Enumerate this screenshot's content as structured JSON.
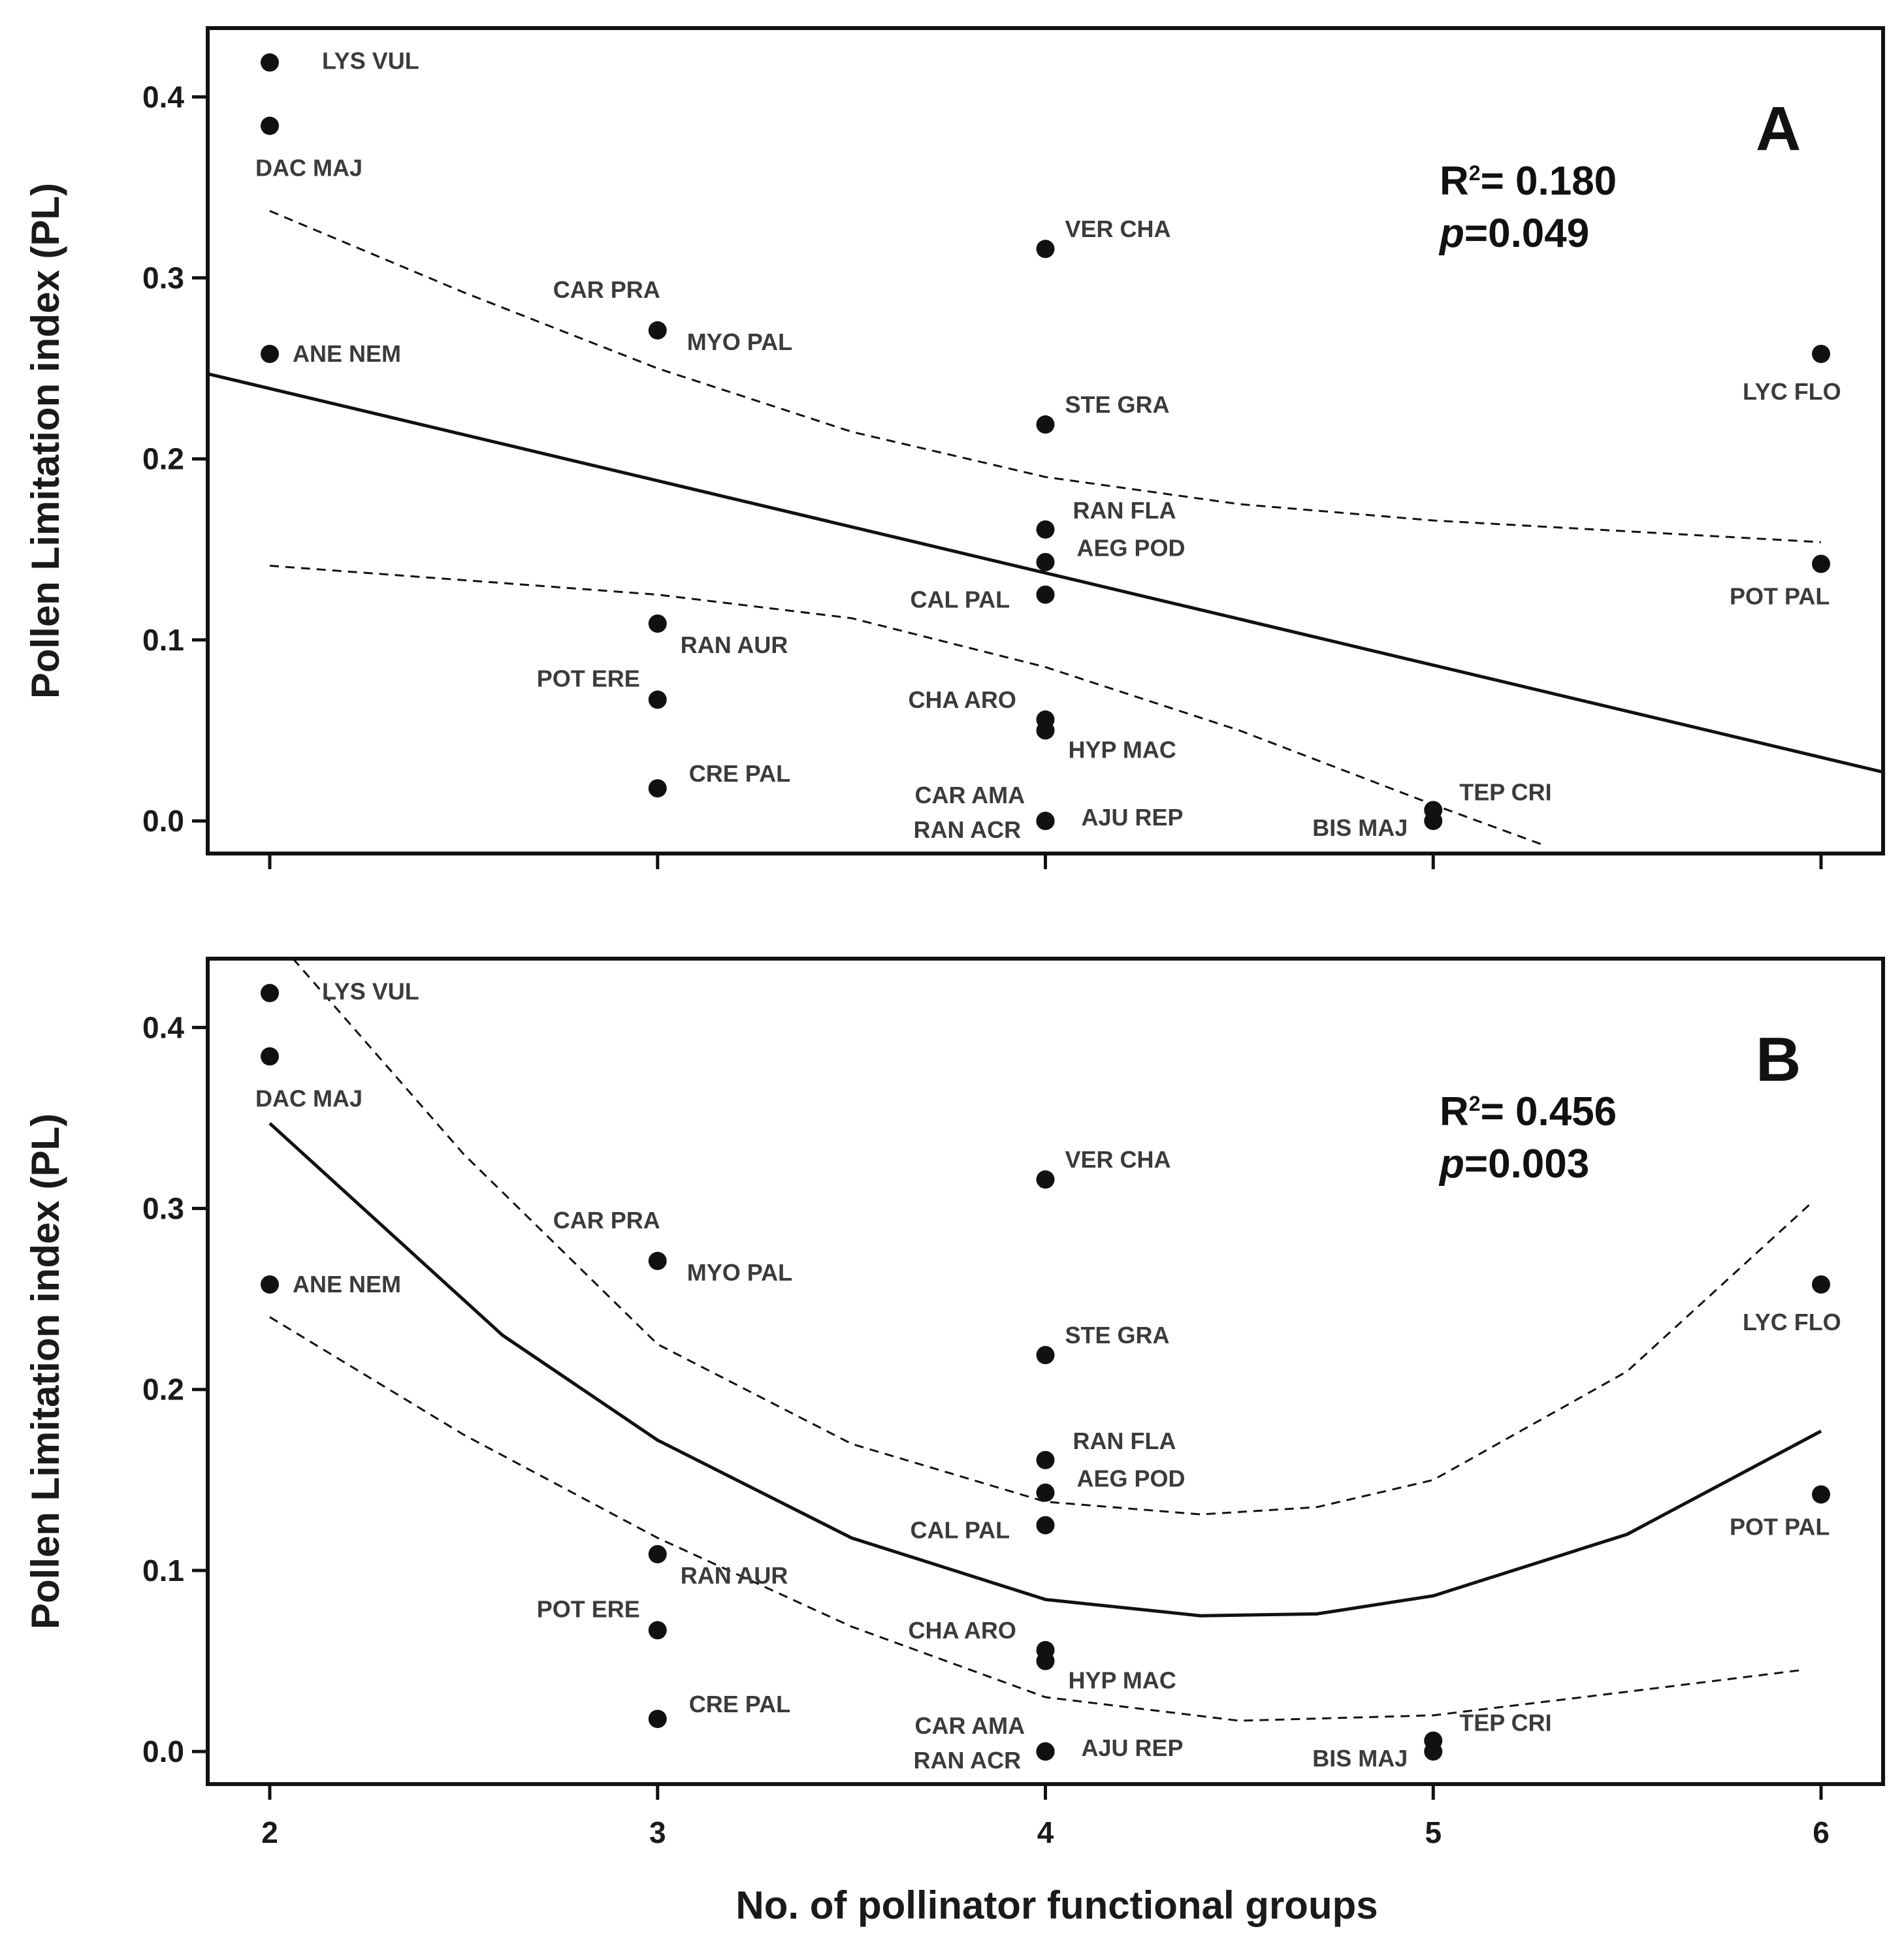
{
  "chart_data": [
    {
      "type": "scatter",
      "panel": "A",
      "ylabel": "Pollen Limitation index (PL)",
      "xlim": [
        1.84,
        6.16
      ],
      "ylim": [
        -0.018,
        0.438
      ],
      "xticks": [
        "2",
        "3",
        "4",
        "5",
        "6"
      ],
      "yticks": [
        "0.0",
        "0.1",
        "0.2",
        "0.3",
        "0.4"
      ],
      "stats": {
        "r2_label": "R",
        "r2_sup": "2",
        "r2_value": "= 0.180",
        "p_label": "p",
        "p_value": "=0.049"
      },
      "points": [
        {
          "label": "LYS VUL",
          "x": 2,
          "y": 0.419
        },
        {
          "label": "DAC MAJ",
          "x": 2,
          "y": 0.384
        },
        {
          "label": "ANE NEM",
          "x": 2,
          "y": 0.258
        },
        {
          "label": "CAR PRA",
          "x": 3,
          "y": null
        },
        {
          "label": "MYO PAL",
          "x": 3,
          "y": 0.271
        },
        {
          "label": "RAN AUR",
          "x": 3,
          "y": 0.109
        },
        {
          "label": "POT ERE",
          "x": 3,
          "y": 0.067
        },
        {
          "label": "CRE PAL",
          "x": 3,
          "y": 0.018
        },
        {
          "label": "VER CHA",
          "x": 4,
          "y": 0.316
        },
        {
          "label": "STE GRA",
          "x": 4,
          "y": 0.219
        },
        {
          "label": "RAN FLA",
          "x": 4,
          "y": 0.161
        },
        {
          "label": "AEG POD",
          "x": 4,
          "y": 0.143
        },
        {
          "label": "CAL PAL",
          "x": 4,
          "y": 0.125
        },
        {
          "label": "CHA ARO",
          "x": 4,
          "y": 0.056
        },
        {
          "label": "HYP MAC",
          "x": 4,
          "y": 0.05
        },
        {
          "label": "CAR AMA",
          "x": 4,
          "y": 0.0
        },
        {
          "label": "RAN ACR",
          "x": 4,
          "y": 0.0
        },
        {
          "label": "AJU REP",
          "x": 4,
          "y": 0.0
        },
        {
          "label": "TEP CRI",
          "x": 5,
          "y": 0.006
        },
        {
          "label": "BIS MAJ",
          "x": 5,
          "y": 0.0
        },
        {
          "label": "LYC FLO",
          "x": 6,
          "y": 0.258
        },
        {
          "label": "POT PAL",
          "x": 6,
          "y": 0.142
        }
      ],
      "fit": {
        "x": [
          1.84,
          6.16
        ],
        "y": [
          0.247,
          0.027
        ]
      },
      "ci_upper": {
        "x": [
          2,
          2.5,
          3,
          3.5,
          4,
          4.5,
          5,
          5.5,
          6
        ],
        "y": [
          0.337,
          0.292,
          0.25,
          0.215,
          0.19,
          0.175,
          0.166,
          0.16,
          0.154
        ]
      },
      "ci_lower": {
        "x": [
          2,
          2.5,
          3,
          3.5,
          4,
          4.5,
          5,
          5.28
        ],
        "y": [
          0.141,
          0.133,
          0.125,
          0.112,
          0.085,
          0.05,
          0.009,
          -0.013
        ]
      }
    },
    {
      "type": "scatter",
      "panel": "B",
      "ylabel": "Pollen Limitation index (PL)",
      "xlabel": "No. of pollinator functional groups",
      "xlim": [
        1.84,
        6.16
      ],
      "ylim": [
        -0.018,
        0.438
      ],
      "xticks": [
        "2",
        "3",
        "4",
        "5",
        "6"
      ],
      "yticks": [
        "0.0",
        "0.1",
        "0.2",
        "0.3",
        "0.4"
      ],
      "stats": {
        "r2_label": "R",
        "r2_sup": "2",
        "r2_value": "= 0.456",
        "p_label": "p",
        "p_value": "=0.003"
      },
      "points": [
        {
          "label": "LYS VUL",
          "x": 2,
          "y": 0.419
        },
        {
          "label": "DAC MAJ",
          "x": 2,
          "y": 0.384
        },
        {
          "label": "ANE NEM",
          "x": 2,
          "y": 0.258
        },
        {
          "label": "CAR PRA",
          "x": 3,
          "y": null
        },
        {
          "label": "MYO PAL",
          "x": 3,
          "y": 0.271
        },
        {
          "label": "RAN AUR",
          "x": 3,
          "y": 0.109
        },
        {
          "label": "POT ERE",
          "x": 3,
          "y": 0.067
        },
        {
          "label": "CRE PAL",
          "x": 3,
          "y": 0.018
        },
        {
          "label": "VER CHA",
          "x": 4,
          "y": 0.316
        },
        {
          "label": "STE GRA",
          "x": 4,
          "y": 0.219
        },
        {
          "label": "RAN FLA",
          "x": 4,
          "y": 0.161
        },
        {
          "label": "AEG POD",
          "x": 4,
          "y": 0.143
        },
        {
          "label": "CAL PAL",
          "x": 4,
          "y": 0.125
        },
        {
          "label": "CHA ARO",
          "x": 4,
          "y": 0.056
        },
        {
          "label": "HYP MAC",
          "x": 4,
          "y": 0.05
        },
        {
          "label": "CAR AMA",
          "x": 4,
          "y": 0.0
        },
        {
          "label": "RAN ACR",
          "x": 4,
          "y": 0.0
        },
        {
          "label": "AJU REP",
          "x": 4,
          "y": 0.0
        },
        {
          "label": "TEP CRI",
          "x": 5,
          "y": 0.006
        },
        {
          "label": "BIS MAJ",
          "x": 5,
          "y": 0.0
        },
        {
          "label": "LYC FLO",
          "x": 6,
          "y": 0.258
        },
        {
          "label": "POT PAL",
          "x": 6,
          "y": 0.142
        }
      ],
      "fit": {
        "x": [
          2,
          2.6,
          3,
          3.5,
          4,
          4.4,
          4.7,
          5,
          5.5,
          6
        ],
        "y": [
          0.347,
          0.23,
          0.172,
          0.118,
          0.084,
          0.075,
          0.076,
          0.086,
          0.12,
          0.177
        ]
      },
      "ci_upper": {
        "x": [
          2.06,
          2.5,
          3,
          3.5,
          4,
          4.4,
          4.7,
          5,
          5.5,
          5.98
        ],
        "y": [
          0.438,
          0.33,
          0.225,
          0.17,
          0.138,
          0.131,
          0.135,
          0.15,
          0.21,
          0.304
        ]
      },
      "ci_lower": {
        "x": [
          2,
          2.5,
          3,
          3.5,
          4,
          4.5,
          5,
          5.5,
          5.95
        ],
        "y": [
          0.24,
          0.175,
          0.118,
          0.069,
          0.03,
          0.017,
          0.02,
          0.033,
          0.045
        ]
      }
    }
  ]
}
